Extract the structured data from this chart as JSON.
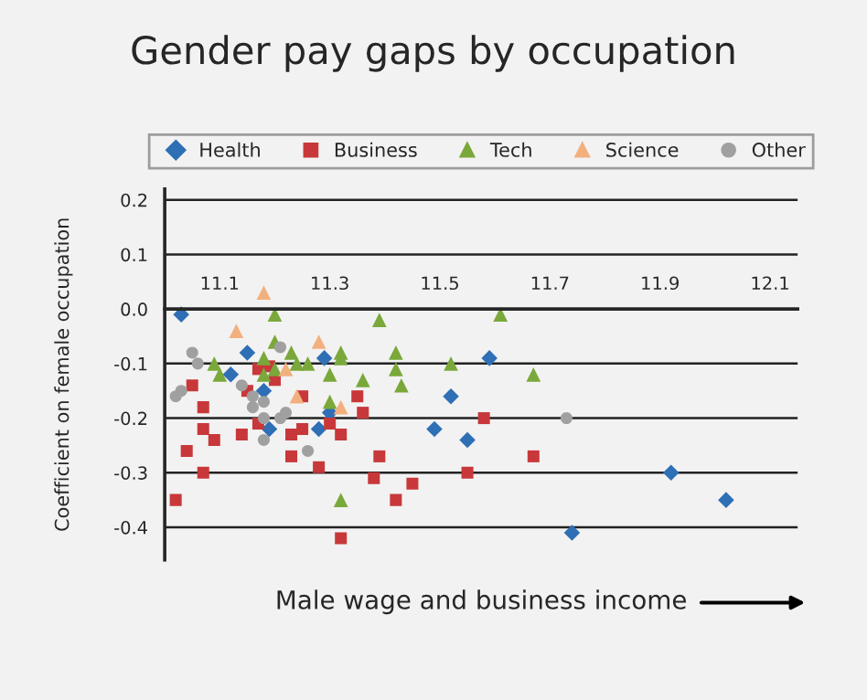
{
  "chart_data": {
    "type": "scatter",
    "title": "Gender pay gaps by occupation",
    "xlabel": "Male wage and business income",
    "ylabel": "Coefficient on female occupation",
    "xlim": [
      11.0,
      12.15
    ],
    "xticks": [
      11.1,
      11.3,
      11.5,
      11.7,
      11.9,
      12.1
    ],
    "ylim": [
      -0.46,
      0.22
    ],
    "yticks": [
      0.2,
      0.1,
      {
        "value": 0,
        "label": "0.0"
      },
      -0.1,
      -0.2,
      -0.3,
      -0.4
    ],
    "grid": "y",
    "legend": "top",
    "series": [
      {
        "name": "Health",
        "color": "#2e6fb5",
        "marker": "diamond",
        "x": [
          11.03,
          11.15,
          11.12,
          11.18,
          11.19,
          11.29,
          11.3,
          11.28,
          11.52,
          11.49,
          11.55,
          11.59,
          11.92,
          12.02,
          11.74
        ],
        "values": [
          -0.01,
          -0.08,
          -0.12,
          -0.15,
          -0.22,
          -0.09,
          -0.19,
          -0.22,
          -0.16,
          -0.22,
          -0.24,
          -0.09,
          -0.3,
          -0.35,
          -0.41
        ]
      },
      {
        "name": "Business",
        "color": "#c8383a",
        "marker": "square",
        "x": [
          11.02,
          11.05,
          11.07,
          11.07,
          11.04,
          11.09,
          11.07,
          11.14,
          11.15,
          11.17,
          11.19,
          11.2,
          11.17,
          11.23,
          11.23,
          11.25,
          11.25,
          11.28,
          11.3,
          11.32,
          11.35,
          11.36,
          11.39,
          11.38,
          11.42,
          11.45,
          11.32,
          11.55,
          11.58,
          11.67
        ],
        "values": [
          -0.35,
          -0.14,
          -0.18,
          -0.22,
          -0.26,
          -0.24,
          -0.3,
          -0.23,
          -0.15,
          -0.11,
          -0.105,
          -0.13,
          -0.21,
          -0.23,
          -0.27,
          -0.22,
          -0.16,
          -0.29,
          -0.21,
          -0.23,
          -0.16,
          -0.19,
          -0.27,
          -0.31,
          -0.35,
          -0.32,
          -0.42,
          -0.3,
          -0.2,
          -0.27
        ]
      },
      {
        "name": "Tech",
        "color": "#7aa83a",
        "marker": "triangle",
        "x": [
          11.2,
          11.09,
          11.1,
          11.2,
          11.18,
          11.2,
          11.18,
          11.23,
          11.24,
          11.26,
          11.3,
          11.32,
          11.32,
          11.3,
          11.39,
          11.36,
          11.42,
          11.42,
          11.43,
          11.32,
          11.52,
          11.61,
          11.67
        ],
        "values": [
          -0.01,
          -0.1,
          -0.12,
          -0.06,
          -0.09,
          -0.11,
          -0.12,
          -0.08,
          -0.1,
          -0.1,
          -0.12,
          -0.08,
          -0.09,
          -0.17,
          -0.02,
          -0.13,
          -0.08,
          -0.11,
          -0.14,
          -0.35,
          -0.1,
          -0.01,
          -0.12
        ]
      },
      {
        "name": "Science",
        "color": "#f2b07e",
        "marker": "triangle",
        "x": [
          11.18,
          11.13,
          11.28,
          11.24,
          11.32,
          11.22
        ],
        "values": [
          0.03,
          -0.04,
          -0.06,
          -0.16,
          -0.18,
          -0.11
        ]
      },
      {
        "name": "Other",
        "color": "#a0a0a0",
        "marker": "circle",
        "x": [
          11.05,
          11.06,
          11.02,
          11.03,
          11.14,
          11.16,
          11.16,
          11.18,
          11.18,
          11.21,
          11.22,
          11.18,
          11.21,
          11.26,
          11.73
        ],
        "values": [
          -0.08,
          -0.1,
          -0.16,
          -0.15,
          -0.14,
          -0.16,
          -0.18,
          -0.17,
          -0.2,
          -0.2,
          -0.19,
          -0.24,
          -0.07,
          -0.26,
          -0.2
        ]
      }
    ]
  }
}
